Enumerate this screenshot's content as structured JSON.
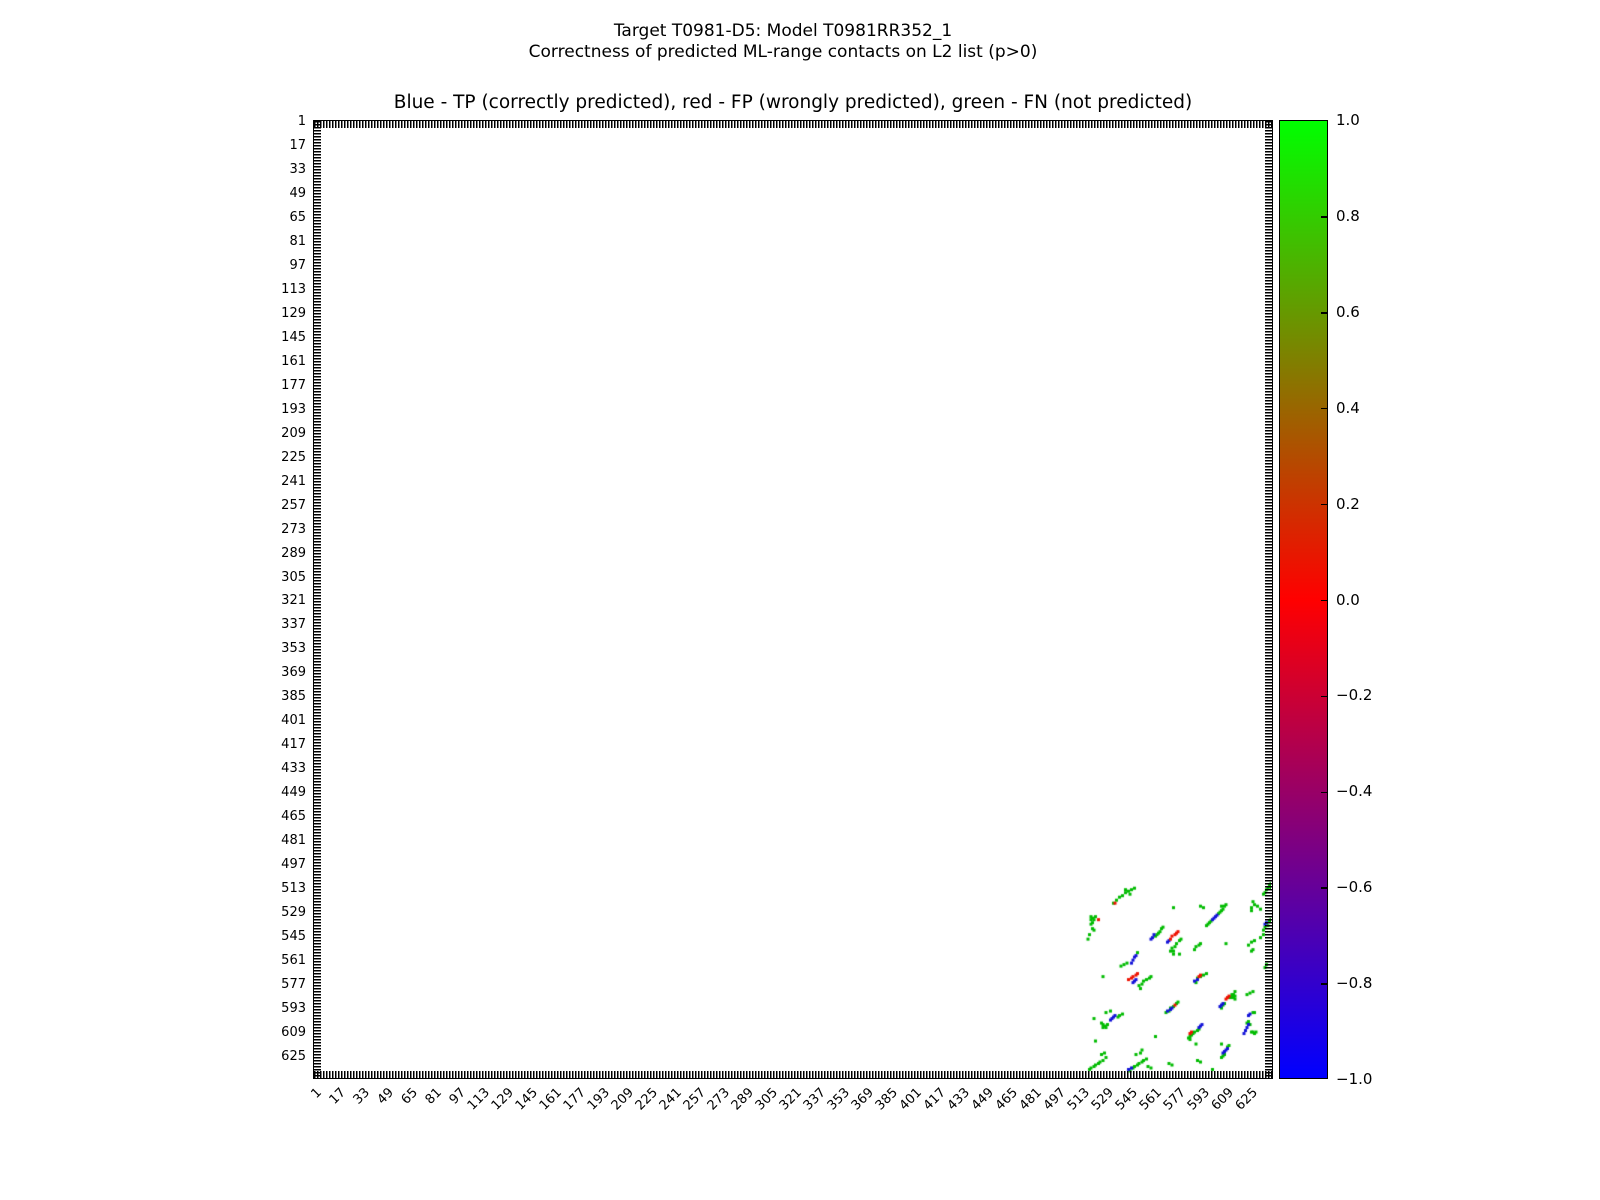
{
  "header": {
    "title_line1": "Target T0981-D5: Model T0981RR352_1",
    "title_line2": "Correctness of predicted ML-range contacts on L2 list (p>0)"
  },
  "chart_data": {
    "type": "scatter",
    "title": "Blue - TP (correctly predicted), red - FP (wrongly predicted), green - FN (not predicted)",
    "xlabel": "",
    "ylabel": "",
    "xlim": [
      0,
      640
    ],
    "ylim": [
      0,
      640
    ],
    "y_axis_inverted": true,
    "grid": false,
    "axis_ticks": [
      1,
      17,
      33,
      49,
      65,
      81,
      97,
      113,
      129,
      145,
      161,
      177,
      193,
      209,
      225,
      241,
      257,
      273,
      289,
      305,
      321,
      337,
      353,
      369,
      385,
      401,
      417,
      433,
      449,
      465,
      481,
      497,
      513,
      529,
      545,
      561,
      577,
      593,
      609,
      625
    ],
    "minor_tick_step": 2,
    "marker": "square",
    "marker_size_px": 3,
    "series": [
      {
        "name": "FN (not predicted)",
        "legend_color_word": "green",
        "color": "#00bb00",
        "points": [
          [
            533,
            522
          ],
          [
            535,
            520
          ],
          [
            537,
            518
          ],
          [
            539,
            517
          ],
          [
            541,
            515
          ],
          [
            543,
            514
          ],
          [
            545,
            513
          ],
          [
            547,
            512
          ],
          [
            541,
            513
          ],
          [
            544,
            516
          ],
          [
            518,
            531
          ],
          [
            519,
            532
          ],
          [
            520,
            533
          ],
          [
            518,
            533
          ],
          [
            519,
            535
          ],
          [
            518,
            536
          ],
          [
            519,
            539
          ],
          [
            520,
            540
          ],
          [
            517,
            543
          ],
          [
            516,
            546
          ],
          [
            521,
            531
          ],
          [
            573,
            525
          ],
          [
            591,
            524
          ],
          [
            593,
            525
          ],
          [
            595,
            537
          ],
          [
            596,
            536
          ],
          [
            597,
            535
          ],
          [
            598,
            534
          ],
          [
            603,
            529
          ],
          [
            604,
            528
          ],
          [
            605,
            527
          ],
          [
            606,
            526
          ],
          [
            607,
            524
          ],
          [
            608,
            523
          ],
          [
            605,
            524
          ],
          [
            625,
            525
          ],
          [
            627,
            523
          ],
          [
            626,
            521
          ],
          [
            629,
            524
          ],
          [
            631,
            526
          ],
          [
            625,
            527
          ],
          [
            633,
            516
          ],
          [
            634,
            515
          ],
          [
            635,
            513
          ],
          [
            636,
            512
          ],
          [
            637,
            510
          ],
          [
            638,
            509
          ],
          [
            639,
            507
          ],
          [
            640,
            506
          ],
          [
            638,
            512
          ],
          [
            561,
            544
          ],
          [
            562,
            543
          ],
          [
            563,
            542
          ],
          [
            564,
            541
          ],
          [
            565,
            539
          ],
          [
            566,
            538
          ],
          [
            571,
            554
          ],
          [
            572,
            552
          ],
          [
            574,
            551
          ],
          [
            575,
            549
          ],
          [
            577,
            547
          ],
          [
            578,
            546
          ],
          [
            573,
            554
          ],
          [
            587,
            553
          ],
          [
            588,
            551
          ],
          [
            590,
            550
          ],
          [
            591,
            549
          ],
          [
            608,
            549
          ],
          [
            573,
            556
          ],
          [
            577,
            556
          ],
          [
            623,
            550
          ],
          [
            625,
            548
          ],
          [
            627,
            547
          ],
          [
            538,
            564
          ],
          [
            540,
            563
          ],
          [
            542,
            562
          ],
          [
            549,
            555
          ],
          [
            550,
            577
          ],
          [
            552,
            576
          ],
          [
            553,
            574
          ],
          [
            555,
            573
          ],
          [
            557,
            572
          ],
          [
            558,
            571
          ],
          [
            551,
            579
          ],
          [
            526,
            571
          ],
          [
            531,
            594
          ],
          [
            528,
            595
          ],
          [
            536,
            598
          ],
          [
            537,
            597
          ],
          [
            539,
            596
          ],
          [
            525,
            602
          ],
          [
            526,
            603
          ],
          [
            527,
            604
          ],
          [
            528,
            605
          ],
          [
            526,
            605
          ],
          [
            529,
            603
          ],
          [
            520,
            599
          ],
          [
            521,
            614
          ],
          [
            561,
            611
          ],
          [
            552,
            620
          ],
          [
            568,
            595
          ],
          [
            570,
            594
          ],
          [
            571,
            592
          ],
          [
            573,
            591
          ],
          [
            575,
            589
          ],
          [
            576,
            588
          ],
          [
            589,
            572
          ],
          [
            591,
            571
          ],
          [
            593,
            570
          ],
          [
            595,
            569
          ],
          [
            588,
            575
          ],
          [
            605,
            592
          ],
          [
            606,
            590
          ],
          [
            607,
            589
          ],
          [
            611,
            585
          ],
          [
            612,
            583
          ],
          [
            614,
            581
          ],
          [
            612,
            584
          ],
          [
            613,
            584
          ],
          [
            614,
            584
          ],
          [
            613,
            583
          ],
          [
            613,
            585
          ],
          [
            614,
            586
          ],
          [
            583,
            612
          ],
          [
            584,
            613
          ],
          [
            584,
            611
          ],
          [
            585,
            610
          ],
          [
            586,
            609
          ],
          [
            587,
            608
          ],
          [
            589,
            607
          ],
          [
            590,
            606
          ],
          [
            588,
            616
          ],
          [
            622,
            602
          ],
          [
            623,
            601
          ],
          [
            624,
            603
          ],
          [
            625,
            608
          ],
          [
            626,
            608
          ],
          [
            627,
            609
          ],
          [
            628,
            608
          ],
          [
            626,
            595
          ],
          [
            627,
            595
          ],
          [
            622,
            583
          ],
          [
            624,
            582
          ],
          [
            626,
            581
          ],
          [
            633,
            540
          ],
          [
            634,
            538
          ],
          [
            636,
            537
          ],
          [
            637,
            534
          ],
          [
            638,
            533
          ],
          [
            639,
            532
          ],
          [
            631,
            545
          ],
          [
            633,
            543
          ],
          [
            625,
            554
          ],
          [
            626,
            553
          ],
          [
            634,
            565
          ],
          [
            635,
            563
          ],
          [
            605,
            625
          ],
          [
            606,
            624
          ],
          [
            607,
            623
          ],
          [
            609,
            618
          ],
          [
            610,
            617
          ],
          [
            605,
            616
          ],
          [
            517,
            633
          ],
          [
            518,
            632
          ],
          [
            520,
            631
          ],
          [
            521,
            630
          ],
          [
            523,
            629
          ],
          [
            524,
            628
          ],
          [
            526,
            627
          ],
          [
            528,
            625
          ],
          [
            525,
            623
          ],
          [
            527,
            622
          ],
          [
            544,
            634
          ],
          [
            546,
            632
          ],
          [
            547,
            631
          ],
          [
            549,
            630
          ],
          [
            550,
            629
          ],
          [
            552,
            628
          ],
          [
            553,
            627
          ],
          [
            555,
            626
          ],
          [
            548,
            623
          ],
          [
            551,
            622
          ],
          [
            556,
            631
          ],
          [
            558,
            632
          ],
          [
            570,
            629
          ],
          [
            572,
            630
          ],
          [
            589,
            627
          ],
          [
            591,
            628
          ],
          [
            599,
            633
          ]
        ]
      },
      {
        "name": "TP (correctly predicted)",
        "legend_color_word": "Blue",
        "color": "#1212d8",
        "points": [
          [
            599,
            533
          ],
          [
            600,
            532
          ],
          [
            601,
            531
          ],
          [
            602,
            530
          ],
          [
            558,
            546
          ],
          [
            559,
            545
          ],
          [
            560,
            543
          ],
          [
            569,
            548
          ],
          [
            570,
            547
          ],
          [
            545,
            562
          ],
          [
            546,
            560
          ],
          [
            547,
            558
          ],
          [
            548,
            557
          ],
          [
            546,
            575
          ],
          [
            547,
            574
          ],
          [
            548,
            573
          ],
          [
            531,
            600
          ],
          [
            532,
            599
          ],
          [
            533,
            598
          ],
          [
            534,
            597
          ],
          [
            569,
            594
          ],
          [
            571,
            593
          ],
          [
            572,
            592
          ],
          [
            587,
            574
          ],
          [
            589,
            573
          ],
          [
            604,
            591
          ],
          [
            605,
            590
          ],
          [
            606,
            589
          ],
          [
            590,
            605
          ],
          [
            591,
            604
          ],
          [
            592,
            603
          ],
          [
            620,
            609
          ],
          [
            621,
            607
          ],
          [
            622,
            605
          ],
          [
            623,
            603
          ],
          [
            623,
            597
          ],
          [
            624,
            596
          ],
          [
            634,
            536
          ],
          [
            635,
            535
          ],
          [
            606,
            622
          ],
          [
            607,
            621
          ],
          [
            608,
            620
          ],
          [
            609,
            619
          ],
          [
            543,
            633
          ],
          [
            545,
            632
          ]
        ]
      },
      {
        "name": "FP (wrongly predicted)",
        "legend_color_word": "red",
        "color": "#ee1100",
        "points": [
          [
            534,
            522
          ],
          [
            523,
            533
          ],
          [
            571,
            546
          ],
          [
            572,
            544
          ],
          [
            574,
            543
          ],
          [
            575,
            542
          ],
          [
            576,
            541
          ],
          [
            543,
            573
          ],
          [
            545,
            572
          ],
          [
            546,
            571
          ],
          [
            548,
            570
          ],
          [
            549,
            569
          ],
          [
            574,
            590
          ],
          [
            590,
            571
          ],
          [
            591,
            570
          ],
          [
            608,
            586
          ],
          [
            609,
            585
          ],
          [
            610,
            584
          ],
          [
            584,
            609
          ],
          [
            585,
            608
          ]
        ]
      }
    ],
    "colorbar": {
      "min": -1.0,
      "max": 1.0,
      "tick_values": [
        1.0,
        0.8,
        0.6,
        0.4,
        0.2,
        0.0,
        -0.2,
        -0.4,
        -0.6,
        -0.8,
        -1.0
      ],
      "tick_labels": [
        "1.0",
        "0.8",
        "0.6",
        "0.4",
        "0.2",
        "0.0",
        "−0.2",
        "−0.4",
        "−0.6",
        "−0.8",
        "−1.0"
      ],
      "top_color": "#00ff00",
      "mid_color": "#ff0000",
      "bottom_color": "#0000ff"
    }
  }
}
